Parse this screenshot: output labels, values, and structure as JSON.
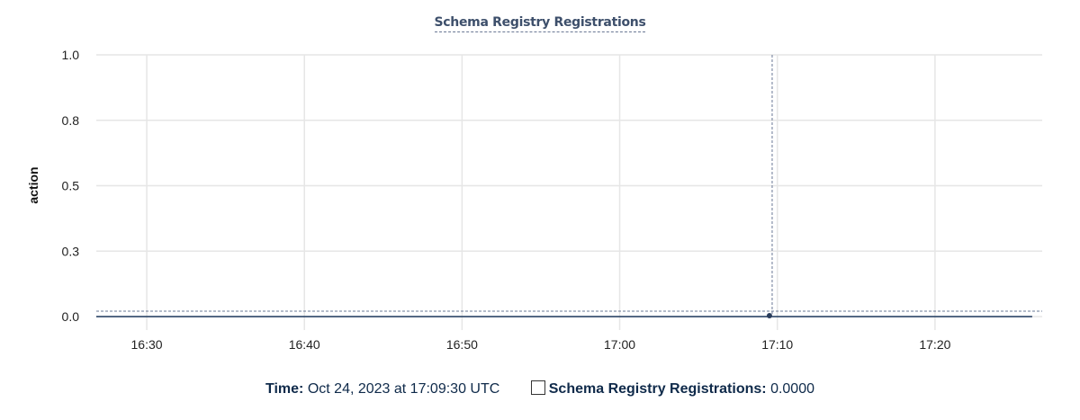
{
  "chart_data": {
    "type": "line",
    "title": "Schema Registry Registrations",
    "xlabel": "",
    "ylabel": "action",
    "ylim": [
      0,
      1
    ],
    "yticks": [
      0,
      0.25,
      0.5,
      0.75,
      1
    ],
    "ytick_labels": [
      "0.0",
      "0.3",
      "0.5",
      "0.8",
      "1.0"
    ],
    "xlim": [
      "16:26:48",
      "17:26:48"
    ],
    "xticks": [
      "16:30",
      "16:40",
      "16:50",
      "17:00",
      "17:10",
      "17:20"
    ],
    "grid": true,
    "series": [
      {
        "name": "Schema Registry Registrations",
        "color": "#1f3a5f",
        "x": [
          "16:26:48",
          "17:26:10"
        ],
        "values": [
          0,
          0
        ]
      }
    ],
    "hover": {
      "x": "17:09:30",
      "value": 0
    }
  },
  "legend": {
    "time_label": "Time:",
    "time_value": "Oct 24, 2023 at 17:09:30 UTC",
    "series_label": "Schema Registry Registrations:",
    "series_value": "0.0000"
  }
}
